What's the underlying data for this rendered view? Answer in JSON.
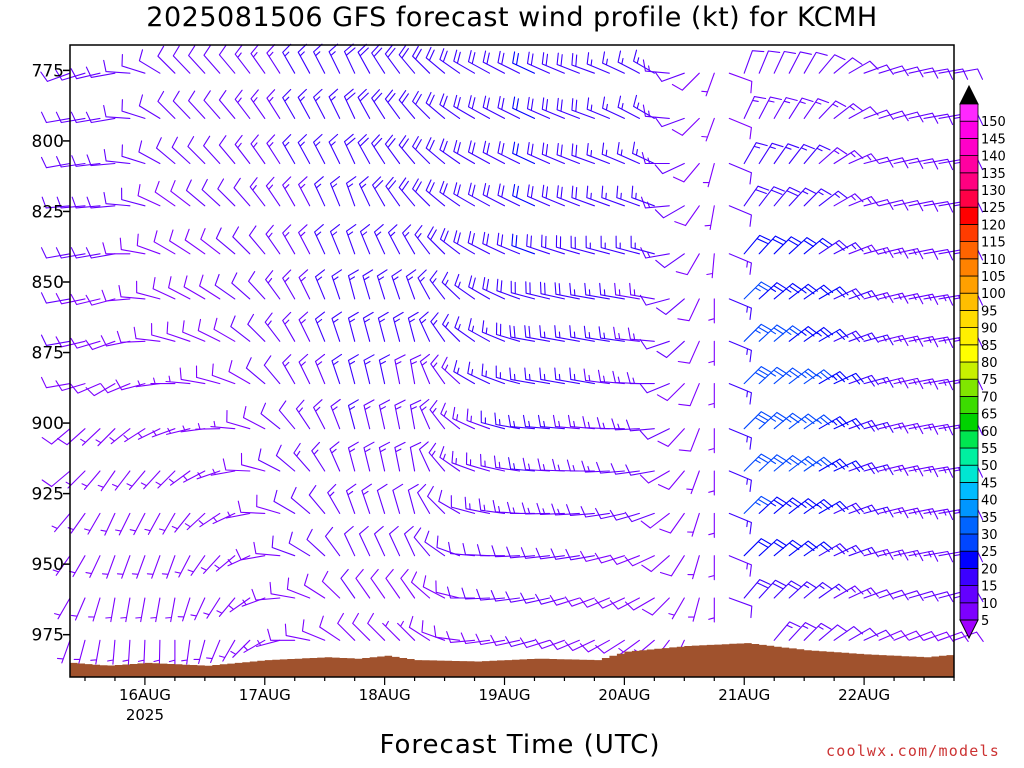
{
  "title": "2025081506 GFS forecast wind profile (kt) for KCMH",
  "xlabel": "Forecast Time (UTC)",
  "credit": "coolwx.com/models",
  "chart_data": {
    "type": "wind_barb_profile",
    "title": "2025081506 GFS forecast wind profile (kt) for KCMH",
    "xlabel": "Forecast Time (UTC)",
    "ylabel": "",
    "y_axis": {
      "units": "hPa",
      "reversed": true,
      "range": [
        766,
        990
      ],
      "ticks": [
        775,
        800,
        825,
        850,
        875,
        900,
        925,
        950,
        975
      ]
    },
    "x_axis": {
      "range_hours_after_init": [
        3,
        180
      ],
      "ticks": [
        {
          "label": "16AUG",
          "sublabel": "2025",
          "hour": 18
        },
        {
          "label": "17AUG",
          "sublabel": "",
          "hour": 42
        },
        {
          "label": "18AUG",
          "sublabel": "",
          "hour": 66
        },
        {
          "label": "19AUG",
          "sublabel": "",
          "hour": 90
        },
        {
          "label": "20AUG",
          "sublabel": "",
          "hour": 114
        },
        {
          "label": "21AUG",
          "sublabel": "",
          "hour": 138
        },
        {
          "label": "22AUG",
          "sublabel": "",
          "hour": 162
        }
      ]
    },
    "levels_hpa": [
      776,
      792,
      808,
      823,
      840,
      856,
      871,
      886,
      902,
      917,
      932,
      947,
      962,
      977
    ],
    "time_step_hours": 3,
    "wind_keys": [
      {
        "start_hour": 3,
        "dir": [
          250,
          260,
          260,
          265,
          260,
          260,
          260,
          260,
          230,
          230,
          220,
          215,
          210,
          200
        ],
        "spd": [
          12,
          12,
          12,
          12,
          11,
          10,
          10,
          9,
          8,
          8,
          7,
          6,
          6,
          6
        ]
      },
      {
        "start_hour": 12,
        "dir": [
          260,
          260,
          265,
          265,
          260,
          255,
          250,
          240,
          225,
          215,
          205,
          200,
          190,
          185
        ],
        "spd": [
          10,
          10,
          11,
          11,
          10,
          9,
          9,
          8,
          7,
          6,
          6,
          6,
          5,
          5
        ]
      },
      {
        "start_hour": 24,
        "dir": [
          315,
          315,
          310,
          305,
          300,
          295,
          285,
          270,
          250,
          225,
          210,
          200,
          190,
          180
        ],
        "spd": [
          10,
          10,
          10,
          9,
          9,
          8,
          8,
          7,
          7,
          6,
          5,
          5,
          5,
          5
        ]
      },
      {
        "start_hour": 36,
        "dir": [
          320,
          320,
          320,
          315,
          310,
          305,
          300,
          290,
          275,
          260,
          245,
          230,
          220,
          210
        ],
        "spd": [
          12,
          12,
          12,
          11,
          10,
          10,
          9,
          8,
          7,
          7,
          6,
          5,
          5,
          5
        ]
      },
      {
        "start_hour": 48,
        "dir": [
          330,
          330,
          330,
          330,
          330,
          330,
          330,
          330,
          320,
          310,
          300,
          290,
          280,
          270
        ],
        "spd": [
          15,
          15,
          15,
          14,
          14,
          14,
          14,
          13,
          12,
          12,
          11,
          10,
          9,
          8
        ]
      },
      {
        "start_hour": 60,
        "dir": [
          335,
          335,
          335,
          340,
          340,
          345,
          345,
          345,
          345,
          345,
          340,
          335,
          325,
          315
        ],
        "spd": [
          18,
          18,
          18,
          17,
          17,
          17,
          16,
          16,
          15,
          14,
          13,
          12,
          10,
          8
        ]
      },
      {
        "start_hour": 72,
        "dir": [
          320,
          320,
          320,
          320,
          330,
          340,
          345,
          350,
          350,
          350,
          345,
          335,
          325,
          315
        ],
        "spd": [
          18,
          18,
          18,
          18,
          17,
          16,
          15,
          14,
          13,
          12,
          11,
          10,
          8,
          7
        ]
      },
      {
        "start_hour": 84,
        "dir": [
          300,
          300,
          300,
          300,
          300,
          305,
          305,
          300,
          295,
          290,
          285,
          275,
          270,
          265
        ],
        "spd": [
          18,
          18,
          18,
          18,
          18,
          17,
          16,
          15,
          14,
          13,
          12,
          11,
          10,
          9
        ]
      },
      {
        "start_hour": 96,
        "dir": [
          295,
          295,
          295,
          295,
          290,
          285,
          280,
          280,
          275,
          275,
          270,
          265,
          260,
          255
        ],
        "spd": [
          20,
          20,
          20,
          20,
          20,
          19,
          18,
          17,
          16,
          15,
          14,
          12,
          11,
          10
        ]
      },
      {
        "start_hour": 108,
        "dir": [
          290,
          290,
          290,
          290,
          285,
          280,
          280,
          280,
          275,
          270,
          265,
          260,
          250,
          245
        ],
        "spd": [
          18,
          18,
          18,
          18,
          18,
          17,
          16,
          15,
          14,
          13,
          12,
          10,
          9,
          8
        ]
      },
      {
        "start_hour": 120,
        "dir": [
          300,
          300,
          295,
          290,
          285,
          280,
          275,
          270,
          265,
          260,
          250,
          245,
          240,
          230
        ],
        "spd": [
          15,
          15,
          15,
          15,
          15,
          14,
          14,
          13,
          12,
          11,
          10,
          9,
          8,
          7
        ]
      },
      {
        "start_hour": 132,
        "dir": [
          200,
          200,
          195,
          190,
          185,
          180,
          180,
          180,
          180,
          180,
          180,
          180,
          180,
          180
        ],
        "spd": [
          6,
          6,
          6,
          6,
          6,
          6,
          6,
          6,
          6,
          6,
          6,
          6,
          6,
          6
        ]
      },
      {
        "start_hour": 138,
        "dir": [
          20,
          25,
          30,
          35,
          40,
          45,
          45,
          45,
          45,
          45,
          45,
          45,
          40,
          35
        ],
        "spd": [
          12,
          13,
          15,
          18,
          22,
          25,
          27,
          28,
          28,
          27,
          25,
          22,
          18,
          14
        ]
      },
      {
        "start_hour": 150,
        "dir": [
          30,
          35,
          40,
          45,
          50,
          55,
          55,
          55,
          55,
          55,
          55,
          55,
          50,
          45
        ],
        "spd": [
          12,
          13,
          15,
          17,
          20,
          22,
          24,
          25,
          25,
          25,
          23,
          20,
          17,
          13
        ]
      },
      {
        "start_hour": 162,
        "dir": [
          70,
          70,
          75,
          75,
          75,
          75,
          75,
          75,
          75,
          75,
          75,
          75,
          70,
          65
        ],
        "spd": [
          12,
          12,
          12,
          12,
          13,
          14,
          15,
          15,
          15,
          15,
          15,
          14,
          12,
          10
        ]
      },
      {
        "start_hour": 174,
        "dir": [
          80,
          80,
          80,
          80,
          80,
          80,
          80,
          80,
          80,
          80,
          80,
          80,
          75,
          70
        ],
        "spd": [
          12,
          12,
          12,
          12,
          12,
          13,
          13,
          13,
          13,
          13,
          13,
          12,
          11,
          9
        ]
      }
    ],
    "colorbar": {
      "units": "kt",
      "labels": [
        "5",
        "10",
        "15",
        "20",
        "25",
        "30",
        "35",
        "40",
        "45",
        "50",
        "55",
        "60",
        "65",
        "70",
        "75",
        "80",
        "85",
        "90",
        "95",
        "100",
        "105",
        "110",
        "115",
        "120",
        "125",
        "130",
        "135",
        "140",
        "145",
        "150"
      ],
      "colors": [
        "#7d00ff",
        "#6400ff",
        "#3c00ff",
        "#0000ff",
        "#0046ff",
        "#0064ff",
        "#0096ff",
        "#00bcff",
        "#00e6d2",
        "#00f0a0",
        "#00e650",
        "#00d200",
        "#3cdc00",
        "#80e600",
        "#c8f000",
        "#ffff00",
        "#fff000",
        "#ffdc00",
        "#ffbe00",
        "#ffa000",
        "#ff8200",
        "#ff6400",
        "#ff3c00",
        "#ff0000",
        "#ff0046",
        "#ff0080",
        "#ff00a0",
        "#ff00c8",
        "#ff00e6",
        "#ff28ff"
      ],
      "below_color": "#a000ff",
      "above_color": "#000000"
    },
    "terrain": {
      "color": "#a0522d",
      "surface_pressure_hpa": [
        {
          "hour": 3,
          "hpa": 985
        },
        {
          "hour": 10,
          "hpa": 986
        },
        {
          "hour": 18,
          "hpa": 985
        },
        {
          "hour": 30,
          "hpa": 986
        },
        {
          "hour": 42,
          "hpa": 984
        },
        {
          "hour": 54,
          "hpa": 983
        },
        {
          "hour": 60,
          "hpa": 983.5
        },
        {
          "hour": 66,
          "hpa": 982.5
        },
        {
          "hour": 72,
          "hpa": 984
        },
        {
          "hour": 84,
          "hpa": 984.5
        },
        {
          "hour": 96,
          "hpa": 983.5
        },
        {
          "hour": 108,
          "hpa": 984
        },
        {
          "hour": 114,
          "hpa": 981
        },
        {
          "hour": 120,
          "hpa": 980
        },
        {
          "hour": 126,
          "hpa": 979
        },
        {
          "hour": 138,
          "hpa": 978
        },
        {
          "hour": 150,
          "hpa": 980.5
        },
        {
          "hour": 162,
          "hpa": 982
        },
        {
          "hour": 174,
          "hpa": 983
        },
        {
          "hour": 180,
          "hpa": 982
        }
      ]
    }
  }
}
